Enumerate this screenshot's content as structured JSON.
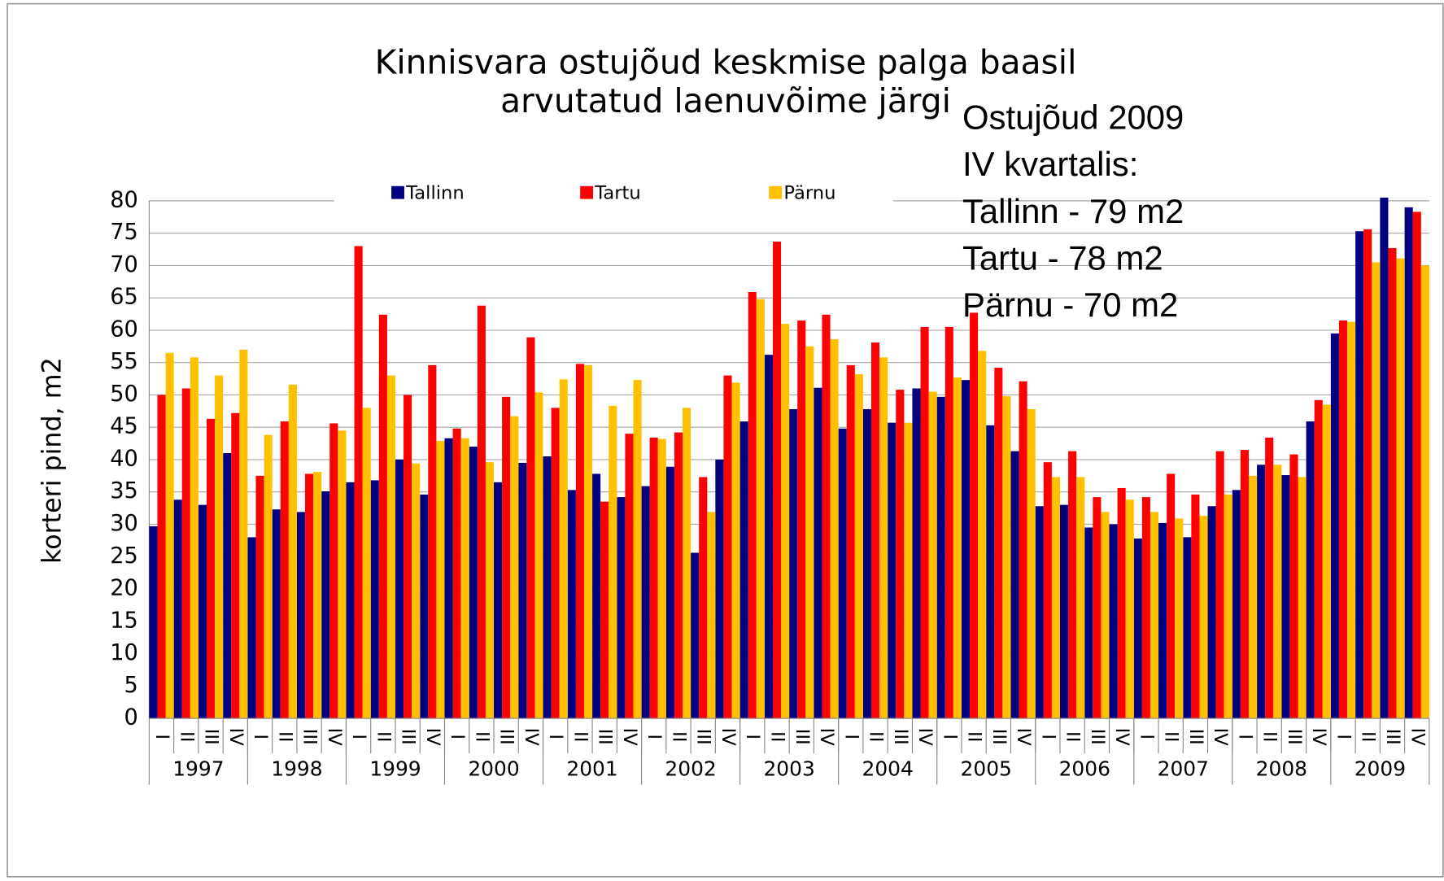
{
  "chart_data": {
    "type": "bar",
    "title": [
      "Kinnisvara ostujõud keskmise palga baasil",
      "arvutatud laenuvõime järgi"
    ],
    "y_label": "korteri pind, m2",
    "annotation": [
      "Ostujõud 2009",
      "IV kvartalis:",
      "Tallinn - 79 m2",
      "Tartu - 78 m2",
      "Pärnu - 70 m2"
    ],
    "groups": [
      "1997",
      "1998",
      "1999",
      "2000",
      "2001",
      "2002",
      "2003",
      "2004",
      "2005",
      "2006",
      "2007",
      "2008",
      "2009"
    ],
    "categories": [
      "I",
      "II",
      "III",
      "IV",
      "I",
      "II",
      "III",
      "IV",
      "I",
      "II",
      "III",
      "IV",
      "I",
      "II",
      "III",
      "IV",
      "I",
      "II",
      "III",
      "IV",
      "I",
      "II",
      "III",
      "IV",
      "I",
      "II",
      "III",
      "IV",
      "I",
      "II",
      "III",
      "IV",
      "I",
      "II",
      "III",
      "IV",
      "I",
      "II",
      "III",
      "IV",
      "I",
      "II",
      "III",
      "IV",
      "I",
      "II",
      "III",
      "IV",
      "I",
      "II",
      "III",
      "IV"
    ],
    "series": [
      {
        "name": "Tallinn",
        "color": "#000080",
        "values": [
          29.7,
          33.8,
          33,
          41,
          28,
          32.3,
          31.9,
          35.1,
          36.5,
          36.8,
          40,
          34.6,
          43.3,
          42,
          36.5,
          39.5,
          40.5,
          35.3,
          37.8,
          34.2,
          35.9,
          38.9,
          25.6,
          40,
          45.9,
          56.2,
          47.8,
          51.1,
          44.8,
          47.8,
          45.7,
          51,
          49.7,
          52.3,
          45.3,
          41.3,
          32.8,
          33,
          29.5,
          30,
          27.8,
          30.2,
          28,
          32.8,
          35.3,
          39.2,
          37.6,
          45.9,
          59.5,
          75.3,
          80.5,
          79
        ]
      },
      {
        "name": "Tartu",
        "color": "#ff0000",
        "values": [
          50,
          51,
          46.3,
          47.2,
          37.5,
          45.9,
          37.8,
          45.6,
          73,
          62.4,
          50,
          54.6,
          44.8,
          63.8,
          49.7,
          58.9,
          48,
          54.8,
          33.5,
          44,
          43.4,
          44.2,
          37.3,
          53,
          65.9,
          73.7,
          61.5,
          62.4,
          54.6,
          58.1,
          50.8,
          60.5,
          60.5,
          62.7,
          54.2,
          52.1,
          39.6,
          41.3,
          34.2,
          35.6,
          34.2,
          37.8,
          34.6,
          41.3,
          41.5,
          43.4,
          40.8,
          49.2,
          61.5,
          75.6,
          72.7,
          78.3
        ]
      },
      {
        "name": "Pärnu",
        "color": "#ffc000",
        "values": [
          56.5,
          55.8,
          53,
          57,
          43.8,
          51.6,
          38.1,
          44.5,
          48,
          53,
          39.4,
          42.9,
          43.3,
          39.6,
          46.7,
          50.4,
          52.4,
          54.6,
          48.3,
          52.3,
          43.2,
          48,
          31.9,
          51.9,
          64.8,
          61,
          57.5,
          58.6,
          53.2,
          55.8,
          45.7,
          50.5,
          52.7,
          56.8,
          49.8,
          47.8,
          37.3,
          37.3,
          31.9,
          33.8,
          31.9,
          30.9,
          31.3,
          34.6,
          37.5,
          39.2,
          37.3,
          48.5,
          61.3,
          70.5,
          71.1,
          70
        ]
      }
    ],
    "ylim": [
      0,
      80
    ],
    "yticks": [
      0,
      5,
      10,
      15,
      20,
      25,
      30,
      35,
      40,
      45,
      50,
      55,
      60,
      65,
      70,
      75,
      80
    ],
    "grid": true,
    "legend": "top"
  }
}
